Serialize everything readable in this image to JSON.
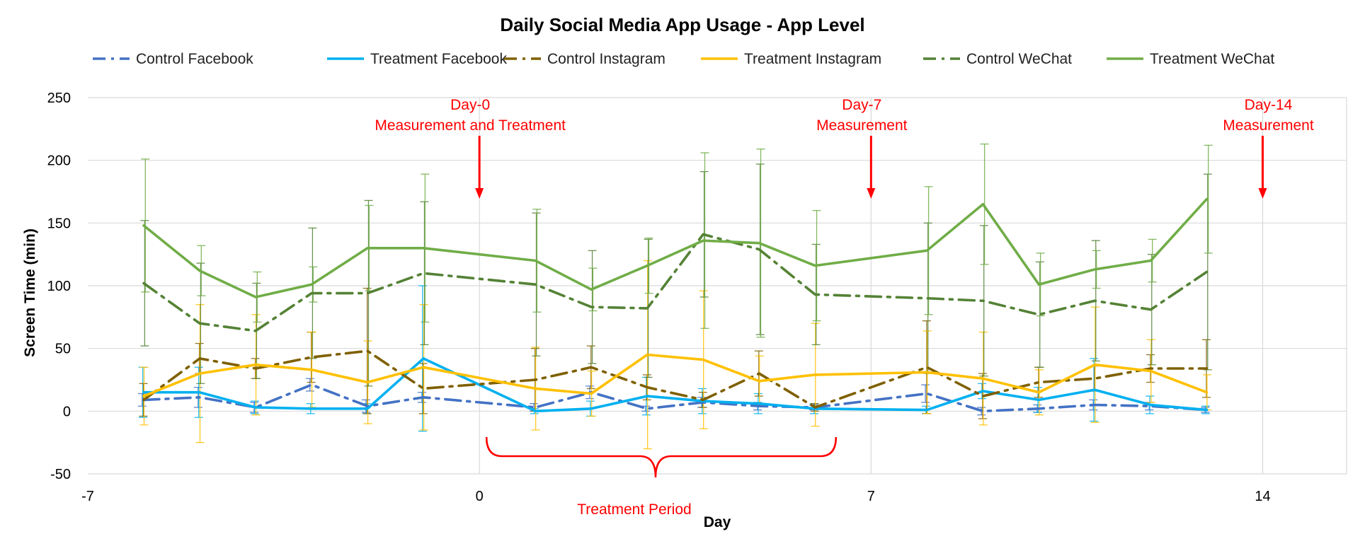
{
  "chart_data": {
    "type": "line",
    "title": "Daily Social Media App Usage - App Level",
    "xlabel": "Day",
    "ylabel": "Screen Time (min)",
    "xlim": [
      -7,
      15.5
    ],
    "ylim": [
      -50,
      250
    ],
    "xticks": [
      -7,
      0,
      7,
      14
    ],
    "yticks": [
      -50,
      0,
      50,
      100,
      150,
      200,
      250
    ],
    "grid": true,
    "legend_position": "top",
    "series": [
      {
        "name": "Control Facebook",
        "color": "#4472C4",
        "dash": "dashdot",
        "x": [
          -6,
          -5,
          -4,
          -3,
          -2,
          -1,
          1,
          2,
          3,
          4,
          5,
          6,
          8,
          9,
          10,
          11,
          12,
          13
        ],
        "y": [
          9,
          11,
          3,
          21,
          4,
          11,
          3,
          15,
          2,
          7,
          4,
          3,
          14,
          0,
          2,
          5,
          4,
          1
        ],
        "err": [
          5,
          8,
          4,
          5,
          5,
          4,
          3,
          5,
          2,
          4,
          3,
          2,
          7,
          3,
          3,
          4,
          3,
          2
        ]
      },
      {
        "name": "Treatment Facebook",
        "color": "#00B0F0",
        "dash": "solid",
        "x": [
          -6,
          -5,
          -4,
          -3,
          -2,
          -1,
          1,
          2,
          3,
          4,
          5,
          6,
          8,
          9,
          10,
          11,
          12,
          13
        ],
        "y": [
          15,
          15,
          3,
          2,
          2,
          42,
          0,
          2,
          12,
          8,
          6,
          2,
          1,
          16,
          9,
          17,
          5,
          1
        ],
        "err": [
          20,
          20,
          5,
          4,
          4,
          58,
          2,
          6,
          15,
          10,
          8,
          4,
          3,
          6,
          10,
          25,
          7,
          3
        ]
      },
      {
        "name": "Control Instagram",
        "color": "#7F6000",
        "dash": "dashdot",
        "x": [
          -6,
          -5,
          -4,
          -3,
          -2,
          -1,
          1,
          2,
          3,
          4,
          5,
          6,
          8,
          9,
          10,
          11,
          12,
          13
        ],
        "y": [
          9,
          42,
          34,
          43,
          48,
          18,
          25,
          35,
          19,
          9,
          30,
          3,
          35,
          12,
          23,
          26,
          34,
          34
        ],
        "err": [
          13,
          12,
          8,
          20,
          50,
          20,
          25,
          17,
          10,
          6,
          18,
          3,
          37,
          18,
          12,
          10,
          11,
          23
        ]
      },
      {
        "name": "Treatment Instagram",
        "color": "#FFC000",
        "dash": "solid",
        "x": [
          -6,
          -5,
          -4,
          -3,
          -2,
          -1,
          1,
          2,
          3,
          4,
          5,
          6,
          8,
          9,
          10,
          11,
          12,
          13
        ],
        "y": [
          12,
          30,
          37,
          33,
          23,
          35,
          18,
          14,
          45,
          41,
          24,
          29,
          31,
          26,
          15,
          37,
          32,
          15
        ],
        "err": [
          23,
          55,
          40,
          30,
          33,
          50,
          33,
          18,
          75,
          55,
          20,
          41,
          33,
          37,
          18,
          46,
          25,
          14
        ]
      },
      {
        "name": "Control WeChat",
        "color": "#548235",
        "dash": "dashdot",
        "x": [
          -6,
          -5,
          -4,
          -3,
          -2,
          -1,
          1,
          2,
          3,
          4,
          5,
          6,
          8,
          9,
          10,
          11,
          12,
          13
        ],
        "y": [
          102,
          70,
          64,
          94,
          94,
          110,
          101,
          83,
          82,
          141,
          129,
          93,
          90,
          88,
          77,
          88,
          81,
          111
        ],
        "err": [
          50,
          48,
          38,
          52,
          74,
          57,
          57,
          45,
          55,
          50,
          68,
          40,
          60,
          60,
          42,
          48,
          44,
          78
        ]
      },
      {
        "name": "Treatment WeChat",
        "color": "#70AD47",
        "dash": "solid",
        "x": [
          -6,
          -5,
          -4,
          -3,
          -2,
          -1,
          1,
          2,
          3,
          4,
          5,
          6,
          8,
          9,
          10,
          11,
          12,
          13
        ],
        "y": [
          148,
          112,
          91,
          101,
          130,
          130,
          120,
          97,
          116,
          136,
          134,
          116,
          128,
          165,
          101,
          113,
          120,
          169
        ],
        "err": [
          53,
          20,
          20,
          14,
          34,
          59,
          41,
          17,
          22,
          70,
          75,
          44,
          51,
          48,
          25,
          15,
          17,
          43
        ]
      }
    ],
    "annotations": [
      {
        "id": "day0",
        "lines": [
          "Day-0",
          "Measurement and Treatment"
        ],
        "x": 0,
        "color": "#FF0000"
      },
      {
        "id": "day7",
        "lines": [
          "Day-7",
          "Measurement"
        ],
        "x": 7,
        "color": "#FF0000"
      },
      {
        "id": "day14",
        "lines": [
          "Day-14",
          "Measurement"
        ],
        "x": 14,
        "color": "#FF0000"
      }
    ],
    "bracket": {
      "label": "Treatment Period",
      "from": 0,
      "to": 6.5,
      "color": "#FF0000"
    }
  }
}
